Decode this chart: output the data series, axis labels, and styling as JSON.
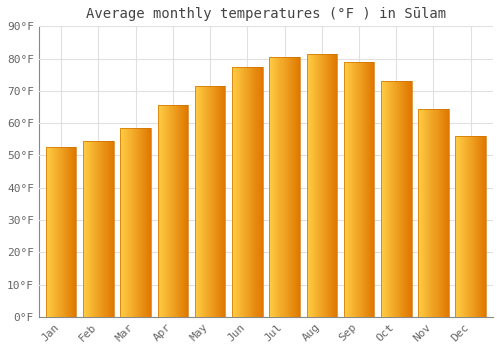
{
  "title": "Average monthly temperatures (°F ) in Sūlam",
  "months": [
    "Jan",
    "Feb",
    "Mar",
    "Apr",
    "May",
    "Jun",
    "Jul",
    "Aug",
    "Sep",
    "Oct",
    "Nov",
    "Dec"
  ],
  "values": [
    52.5,
    54.5,
    58.5,
    65.5,
    71.5,
    77.5,
    80.5,
    81.5,
    79.0,
    73.0,
    64.5,
    56.0
  ],
  "bar_color_left": "#FFB300",
  "bar_color_right": "#F08000",
  "background_color": "#FFFFFF",
  "grid_color": "#E0E0E0",
  "ylim": [
    0,
    90
  ],
  "yticks": [
    0,
    10,
    20,
    30,
    40,
    50,
    60,
    70,
    80,
    90
  ],
  "title_fontsize": 10,
  "tick_fontsize": 8
}
